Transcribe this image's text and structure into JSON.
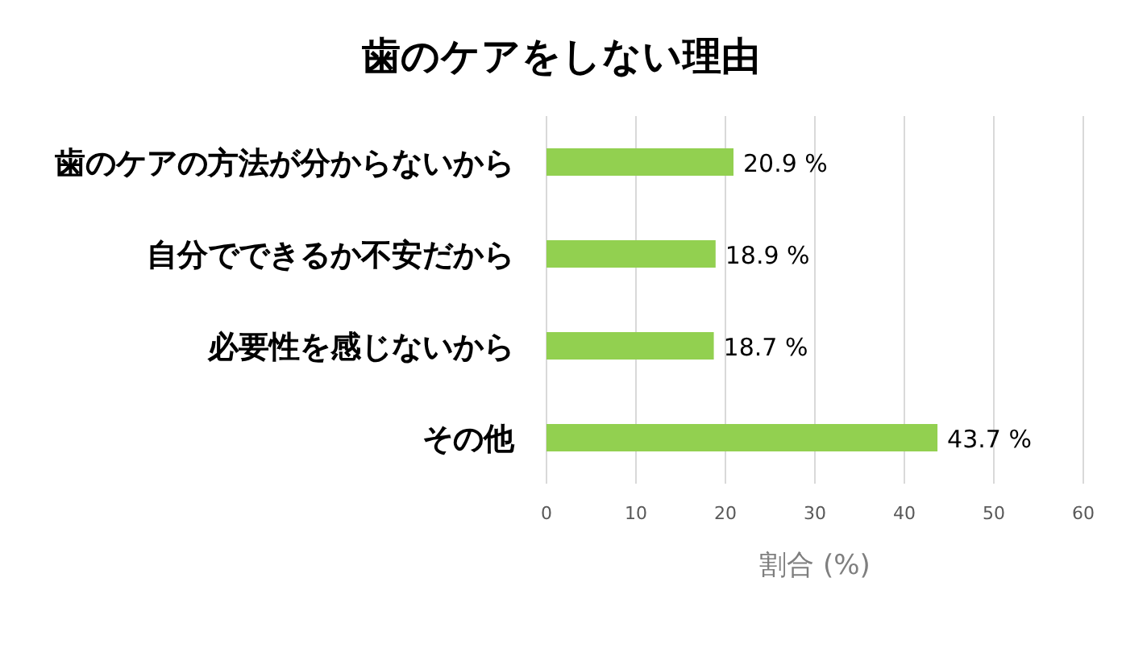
{
  "chart_data": {
    "type": "bar",
    "orientation": "horizontal",
    "title": "歯のケアをしない理由",
    "xlabel": "割合 (%)",
    "categories": [
      "歯のケアの方法が分からないから",
      "自分でできるか不安だから",
      "必要性を感じないから",
      "その他"
    ],
    "values": [
      20.9,
      18.9,
      18.7,
      43.7
    ],
    "value_labels": [
      "20.9 %",
      "18.9 %",
      "18.7 %",
      "43.7 %"
    ],
    "color": "#92d050",
    "xlim": [
      0,
      60
    ],
    "xticks": [
      0,
      10,
      20,
      30,
      40,
      50,
      60
    ],
    "grid": "x"
  }
}
